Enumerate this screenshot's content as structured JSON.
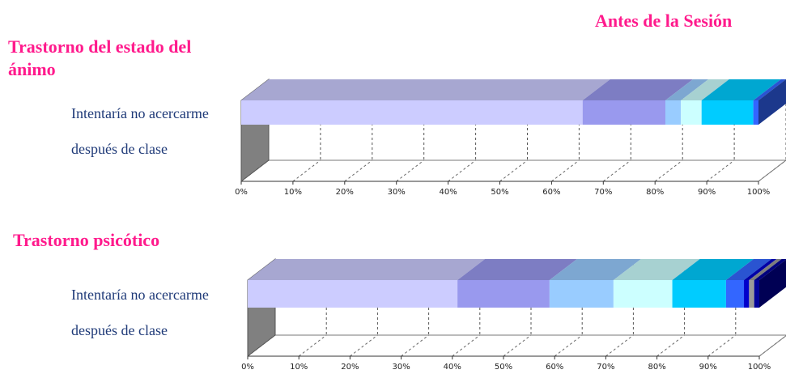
{
  "page_title": "Antes de la Sesión",
  "chart_data": [
    {
      "type": "bar",
      "orientation": "horizontal",
      "stacked": true,
      "percent_stacked": true,
      "three_d": true,
      "title": "Trastorno del estado del ánimo",
      "categories": [
        "Intentaría no acercarme después de clase"
      ],
      "xlim": [
        0,
        100
      ],
      "tick_labels": [
        "0%",
        "10%",
        "20%",
        "30%",
        "40%",
        "50%",
        "60%",
        "70%",
        "80%",
        "90%",
        "100%"
      ],
      "grid": "vertical-dashed",
      "series": [
        {
          "values": [
            66
          ],
          "color": "#ccccff"
        },
        {
          "values": [
            16
          ],
          "color": "#9999ee"
        },
        {
          "values": [
            3
          ],
          "color": "#99ccff"
        },
        {
          "values": [
            4
          ],
          "color": "#ccffff"
        },
        {
          "values": [
            10
          ],
          "color": "#00ccff"
        },
        {
          "values": [
            1
          ],
          "color": "#3366ff"
        }
      ]
    },
    {
      "type": "bar",
      "orientation": "horizontal",
      "stacked": true,
      "percent_stacked": true,
      "three_d": true,
      "title": "Trastorno psicótico",
      "categories": [
        "Intentaría no acercarme después de clase"
      ],
      "xlim": [
        0,
        100
      ],
      "tick_labels": [
        "0%",
        "10%",
        "20%",
        "30%",
        "40%",
        "50%",
        "60%",
        "70%",
        "80%",
        "90%",
        "100%"
      ],
      "grid": "vertical-dashed",
      "series": [
        {
          "values": [
            41
          ],
          "color": "#ccccff"
        },
        {
          "values": [
            18
          ],
          "color": "#9999ee"
        },
        {
          "values": [
            12.5
          ],
          "color": "#99ccff"
        },
        {
          "values": [
            11.5
          ],
          "color": "#ccffff"
        },
        {
          "values": [
            10.5
          ],
          "color": "#00ccff"
        },
        {
          "values": [
            3.5
          ],
          "color": "#3366ff"
        },
        {
          "values": [
            1
          ],
          "color": "#0000cc"
        },
        {
          "values": [
            1
          ],
          "color": "#999999"
        },
        {
          "values": [
            1
          ],
          "color": "#000099"
        }
      ]
    }
  ],
  "category_lines": {
    "line1": "Intentaría no acercarme",
    "line2": "después de clase"
  }
}
